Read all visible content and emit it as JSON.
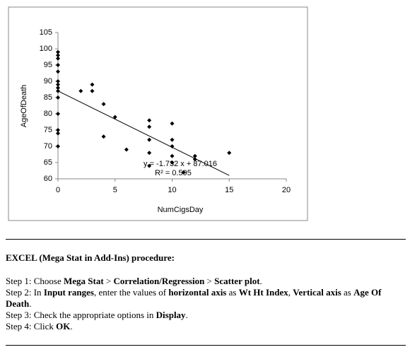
{
  "chart_data": {
    "type": "scatter",
    "x_label": "NumCigsDay",
    "y_label": "AgeOfDeath",
    "x": [
      0,
      0,
      0,
      0,
      0,
      0,
      0,
      0,
      0,
      0,
      0,
      0,
      0,
      0,
      2,
      3,
      3,
      4,
      4,
      5,
      6,
      8,
      8,
      8,
      8,
      8,
      10,
      10,
      10,
      10,
      10,
      11,
      12,
      12,
      15
    ],
    "values": [
      99,
      98,
      97,
      95,
      93,
      90,
      89,
      88,
      87,
      85,
      80,
      75,
      74,
      70,
      87,
      89,
      87,
      83,
      73,
      79,
      69,
      78,
      76,
      72,
      68,
      64,
      77,
      72,
      70,
      67,
      65,
      62,
      67,
      66,
      68
    ],
    "color": "#000000",
    "xlim": [
      0,
      20
    ],
    "xticks": [
      0,
      5,
      10,
      15,
      20
    ],
    "ylim": [
      60,
      105
    ],
    "yticks": [
      60,
      65,
      70,
      75,
      80,
      85,
      90,
      95,
      100,
      105
    ],
    "trendline": {
      "slope": -1.732,
      "intercept": 87.016,
      "x_range": [
        0,
        15
      ],
      "equation": "y = -1.732 x + 87.016",
      "r_squared": "R² = 0.595"
    }
  },
  "document": {
    "heading": "EXCEL (Mega Stat in Add-Ins) procedure:",
    "steps": [
      [
        {
          "t": "Step 1: Choose "
        },
        {
          "t": "Mega Stat",
          "b": true
        },
        {
          "t": " > "
        },
        {
          "t": "Correlation/Regression",
          "b": true
        },
        {
          "t": " > "
        },
        {
          "t": "Scatter plot",
          "b": true
        },
        {
          "t": "."
        }
      ],
      [
        {
          "t": "Step 2: In "
        },
        {
          "t": "Input ranges",
          "b": true
        },
        {
          "t": ", enter the values of "
        },
        {
          "t": "horizontal axis",
          "b": true
        },
        {
          "t": " as "
        },
        {
          "t": "Wt Ht Index",
          "b": true
        },
        {
          "t": ", "
        },
        {
          "t": "Vertical axis",
          "b": true
        },
        {
          "t": " as "
        },
        {
          "t": "Age Of Death",
          "b": true
        },
        {
          "t": "."
        }
      ],
      [
        {
          "t": "Step 3: Check the appropriate options in "
        },
        {
          "t": "Display",
          "b": true
        },
        {
          "t": "."
        }
      ],
      [
        {
          "t": "Step 4: Click "
        },
        {
          "t": "OK",
          "b": true
        },
        {
          "t": "."
        }
      ]
    ]
  }
}
